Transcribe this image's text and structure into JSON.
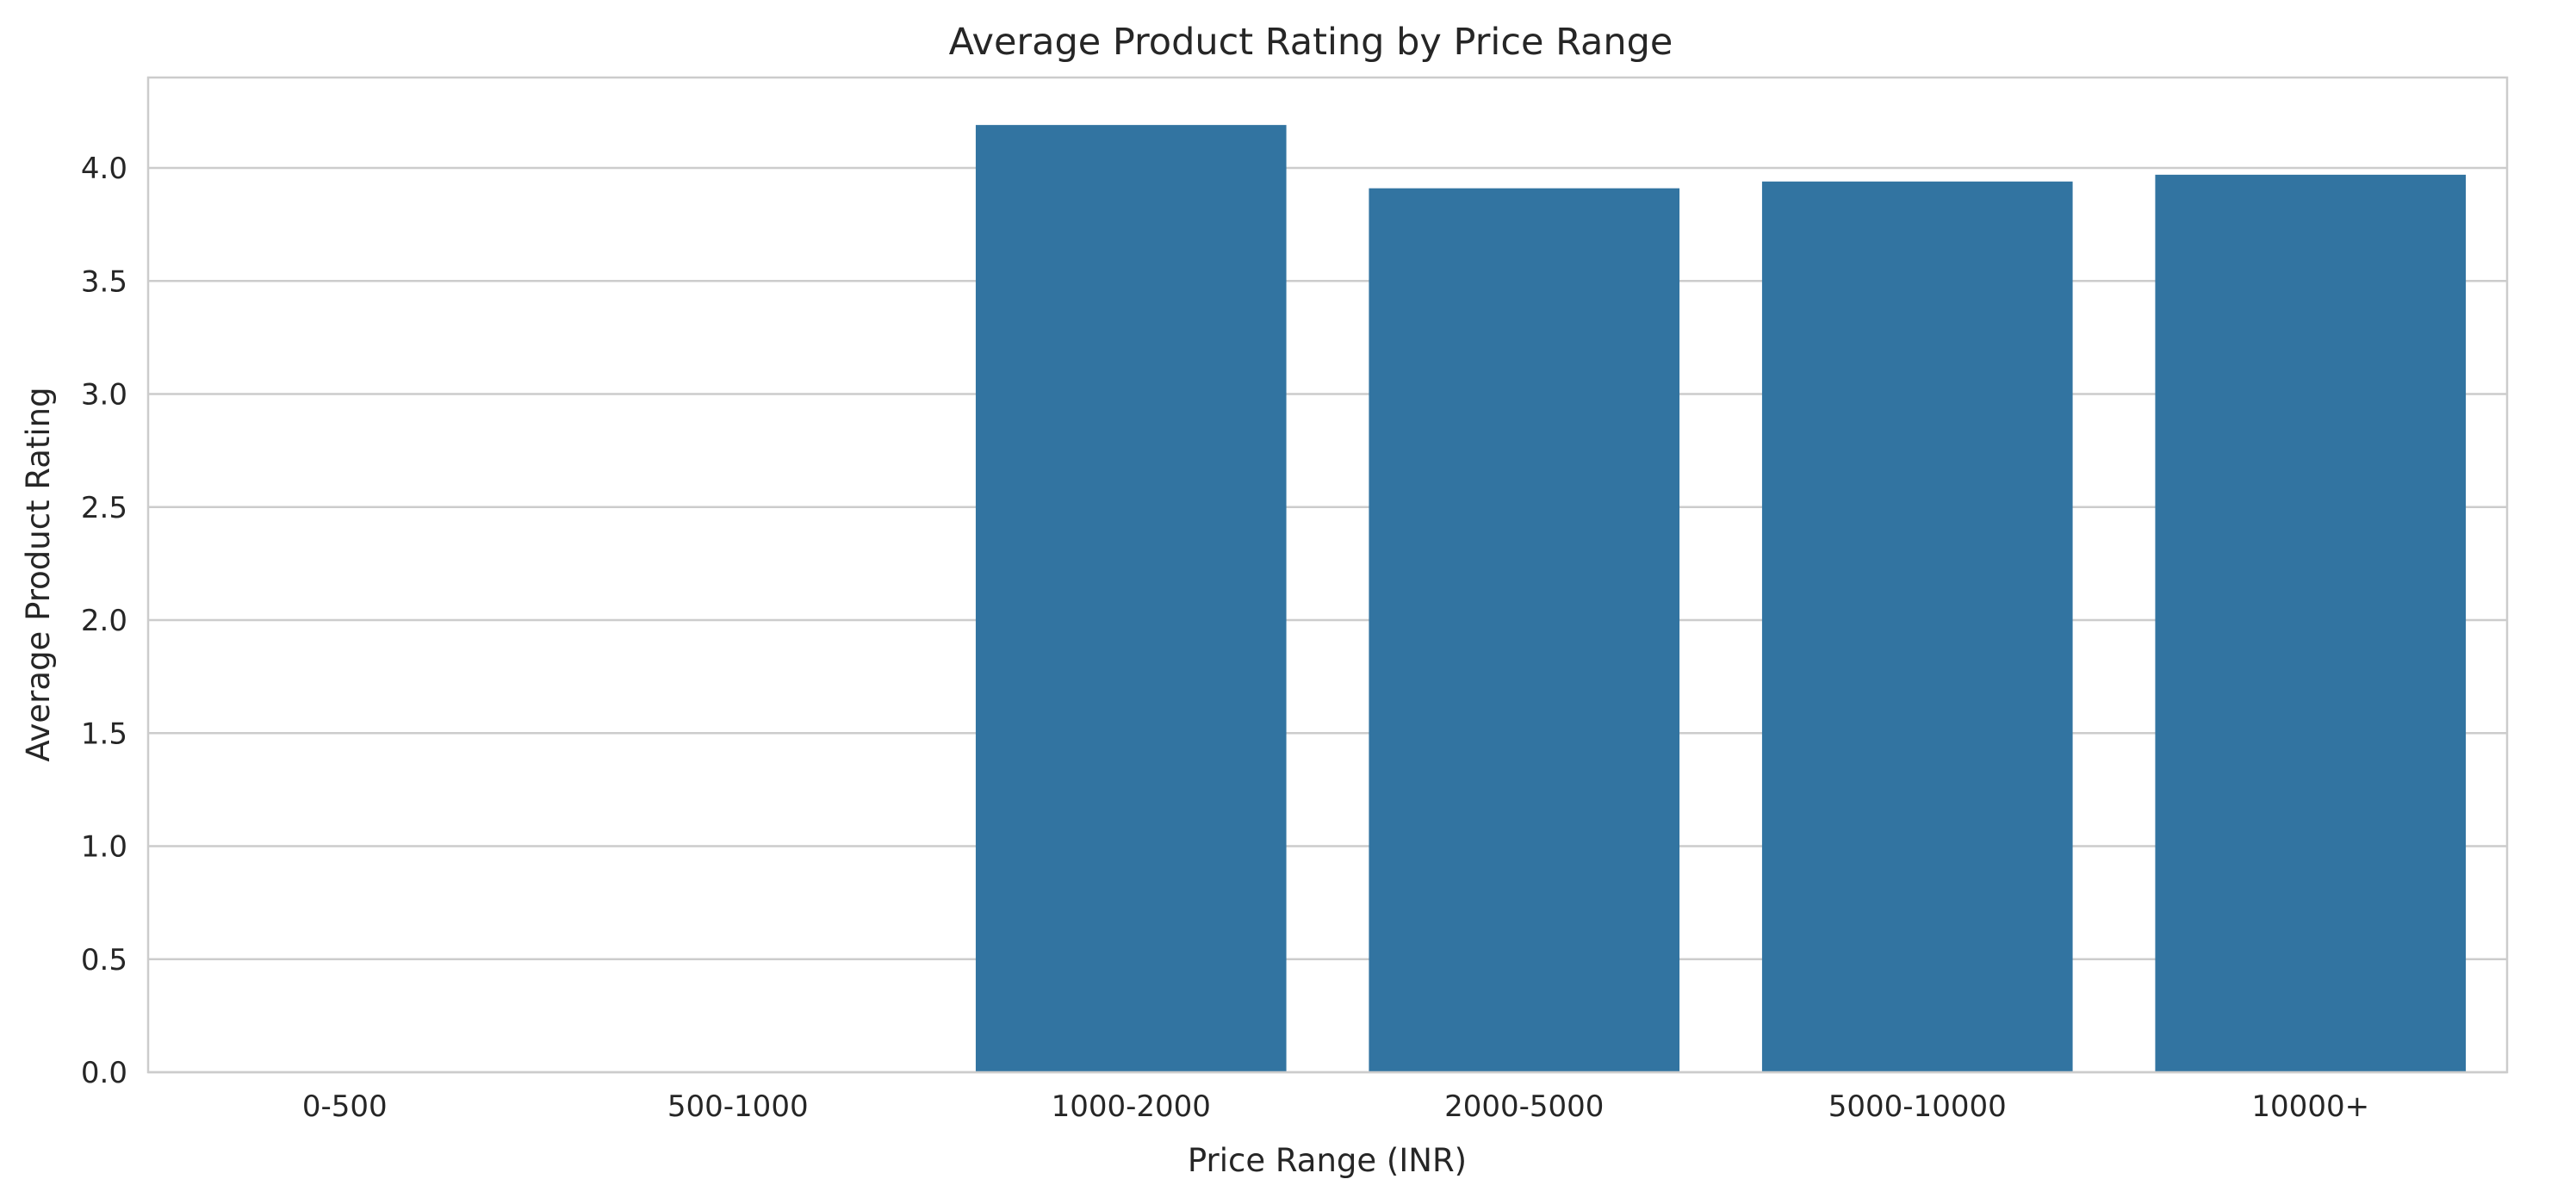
{
  "chart_data": {
    "type": "bar",
    "title": "Average Product Rating by Price Range",
    "xlabel": "Price Range (INR)",
    "ylabel": "Average Product Rating",
    "categories": [
      "0-500",
      "500-1000",
      "1000-2000",
      "2000-5000",
      "5000-10000",
      "10000+"
    ],
    "values": [
      0,
      0,
      4.19,
      3.91,
      3.94,
      3.97
    ],
    "ylim": [
      0,
      4.4
    ],
    "yticks": [
      "0.0",
      "0.5",
      "1.0",
      "1.5",
      "2.0",
      "2.5",
      "3.0",
      "3.5",
      "4.0"
    ],
    "grid": "horizontal",
    "bar_color": "#3274a1",
    "grid_color": "#cccccc"
  }
}
